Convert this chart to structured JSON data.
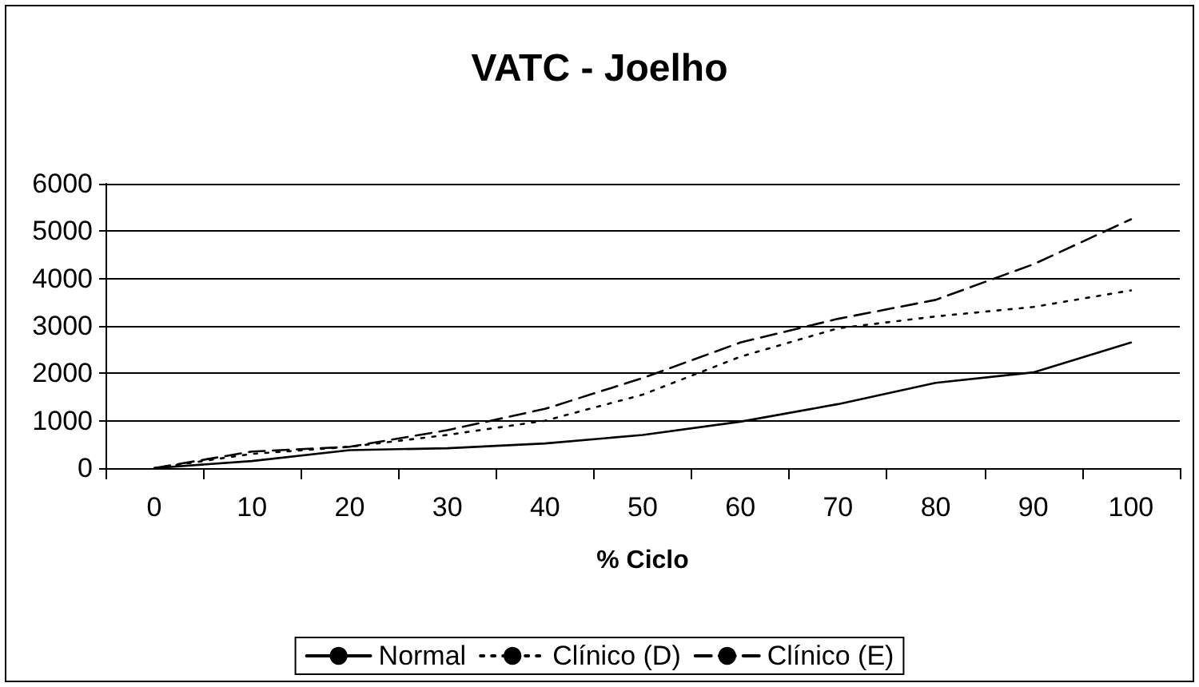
{
  "chart_data": {
    "type": "line",
    "title": "VATC - Joelho",
    "xlabel": "% Ciclo",
    "categories": [
      "0",
      "10",
      "20",
      "30",
      "40",
      "50",
      "60",
      "70",
      "80",
      "90",
      "100"
    ],
    "series": [
      {
        "name": "Normal",
        "color": "#000000",
        "line_style": "solid",
        "values": [
          0,
          150,
          380,
          420,
          520,
          700,
          980,
          1350,
          1800,
          2020,
          2650
        ]
      },
      {
        "name": "Clínico (D)",
        "color": "#000000",
        "line_style": "dotted",
        "values": [
          0,
          300,
          450,
          700,
          1000,
          1550,
          2350,
          2950,
          3200,
          3400,
          3750
        ]
      },
      {
        "name": "Clínico (E)",
        "color": "#000000",
        "line_style": "dashed",
        "values": [
          0,
          350,
          450,
          800,
          1250,
          1900,
          2650,
          3150,
          3550,
          4300,
          5250
        ]
      }
    ],
    "ylim": [
      0,
      6000
    ],
    "yticks": [
      0,
      1000,
      2000,
      3000,
      4000,
      5000,
      6000
    ],
    "grid": "y",
    "legend": "bottom",
    "marker": "none"
  }
}
